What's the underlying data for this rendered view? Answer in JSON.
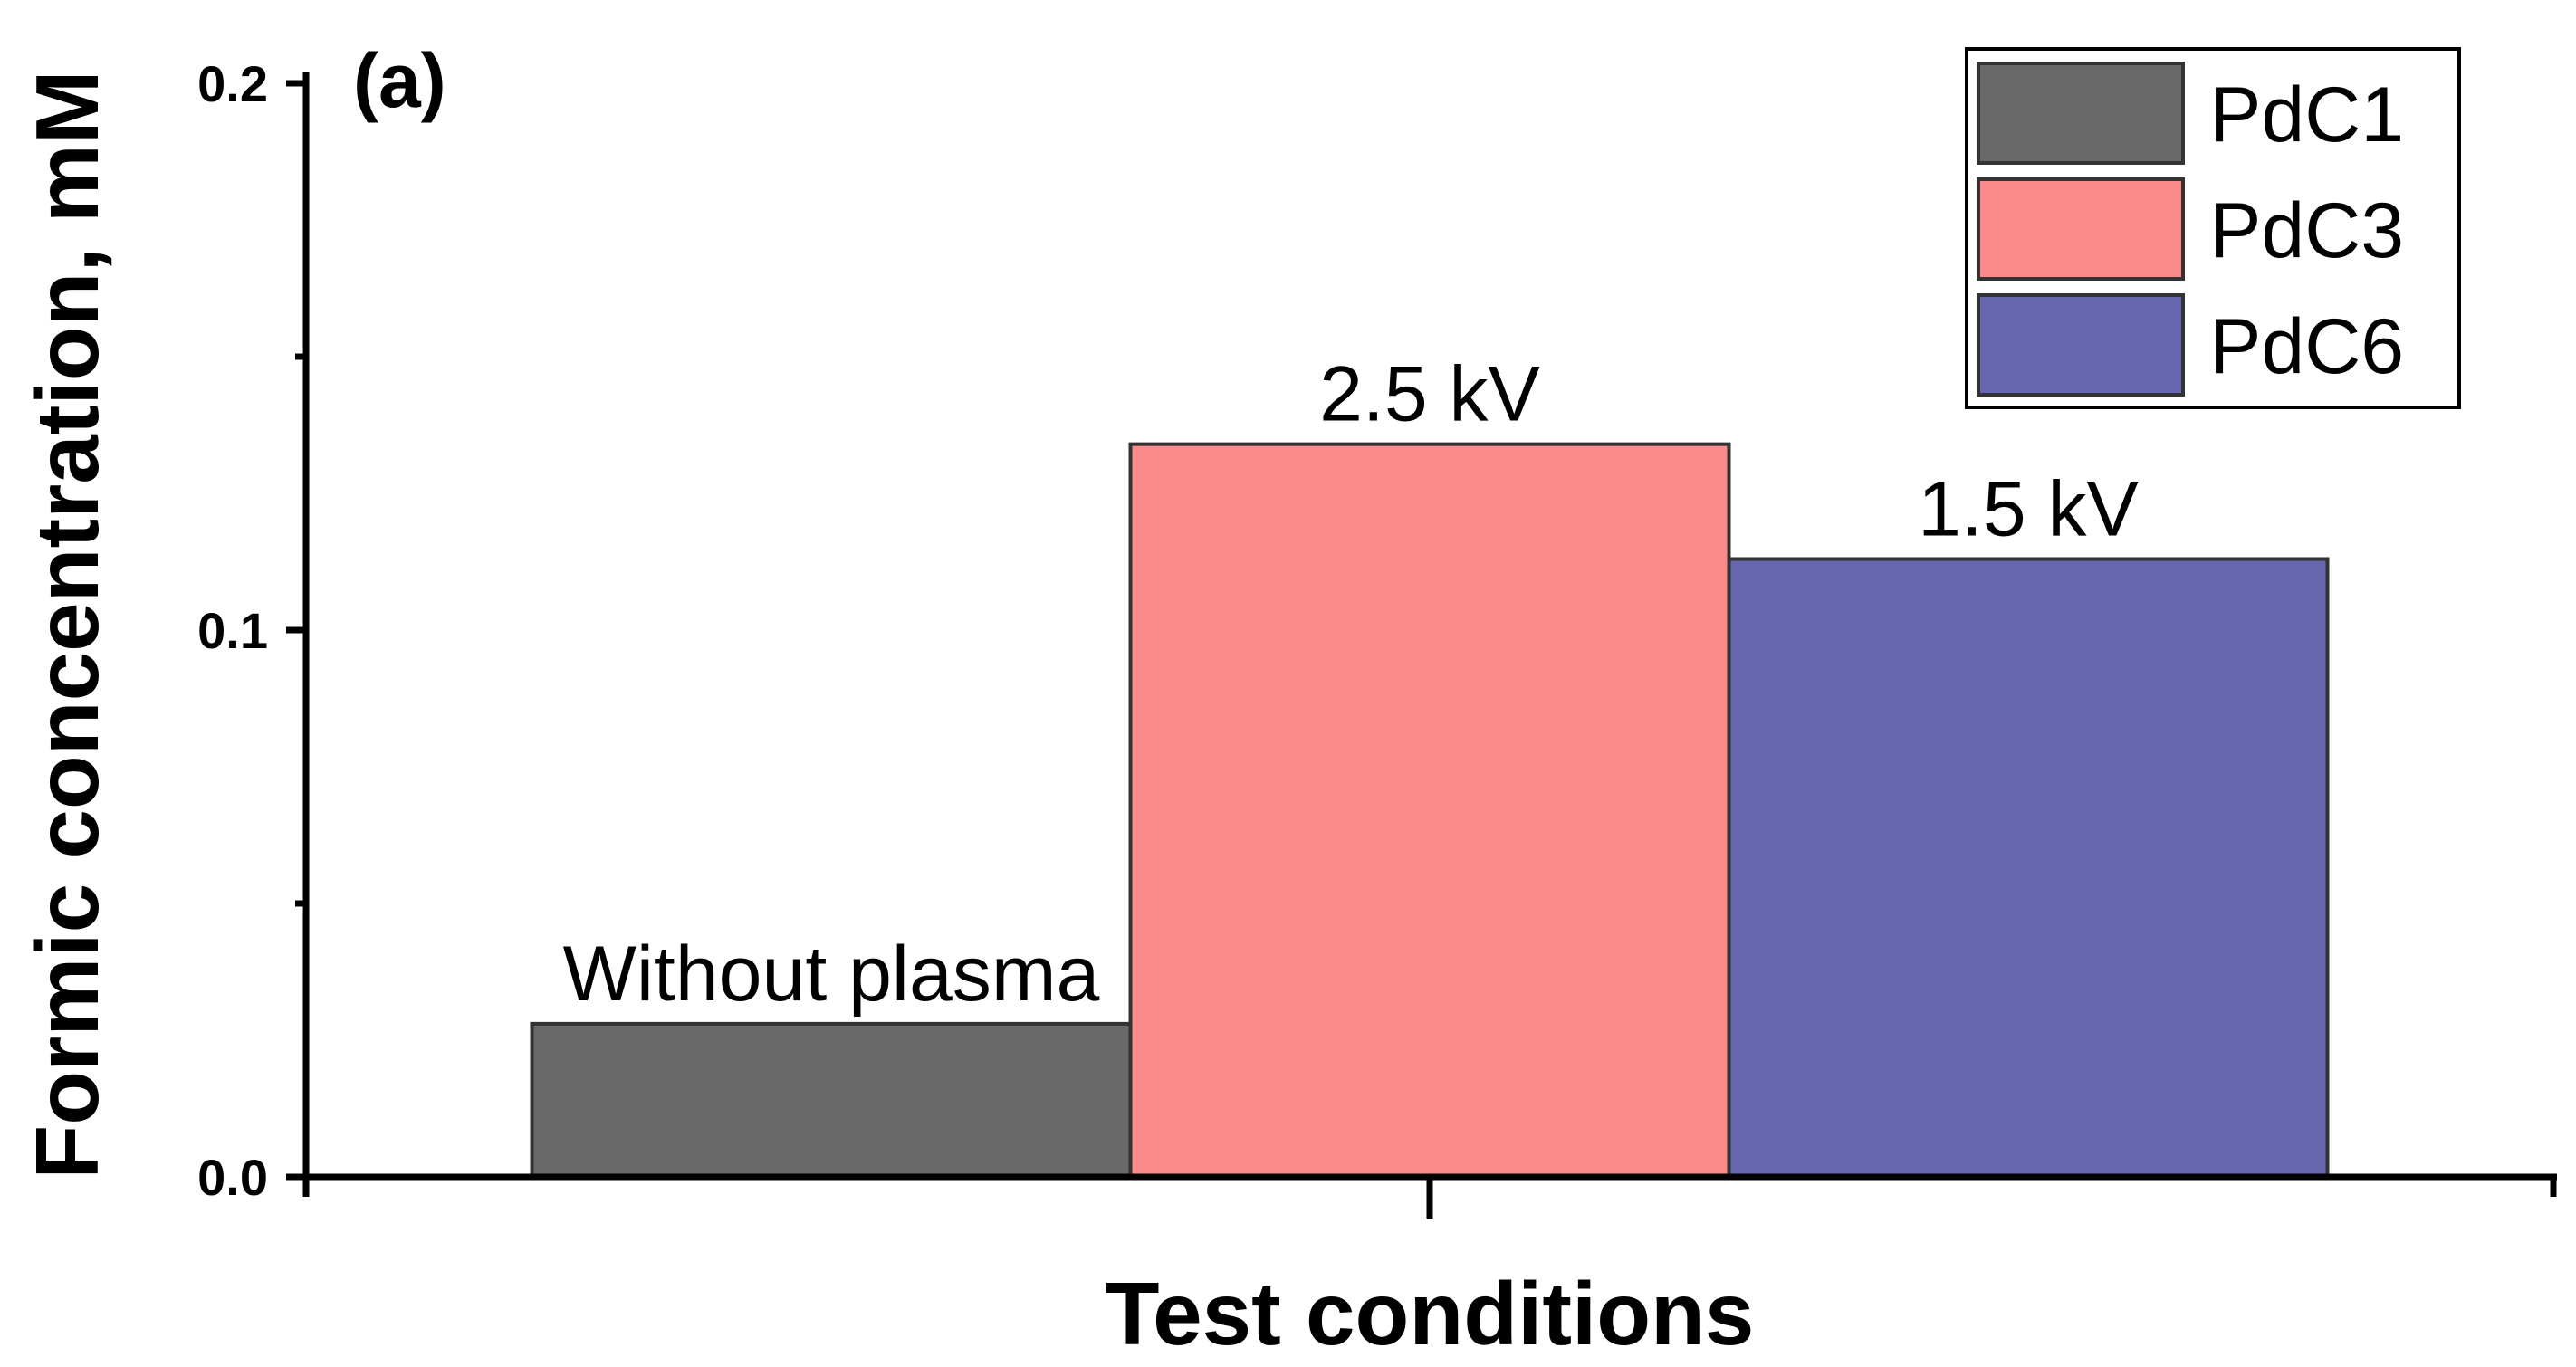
{
  "chart_data": {
    "type": "bar",
    "panel_label": "(a)",
    "xlabel": "Test conditions",
    "ylabel": "Formic concentration, mM",
    "ylim": [
      0.0,
      0.2
    ],
    "y_major_ticks": [
      0.0,
      0.1,
      0.2
    ],
    "y_tick_labels": [
      "0.0",
      "0.1",
      "0.2"
    ],
    "y_minor_ticks": [
      0.05,
      0.15
    ],
    "categories": [
      ""
    ],
    "grid": false,
    "legend_position": "top-right",
    "series": [
      {
        "name": "PdC1",
        "values": [
          0.028
        ],
        "color": "#696969",
        "annotation": "Without plasma"
      },
      {
        "name": "PdC3",
        "values": [
          0.134
        ],
        "color": "#FC8A8A",
        "annotation": "2.5 kV"
      },
      {
        "name": "PdC6",
        "values": [
          0.113
        ],
        "color": "#6767B0",
        "annotation": "1.5 kV"
      }
    ]
  }
}
